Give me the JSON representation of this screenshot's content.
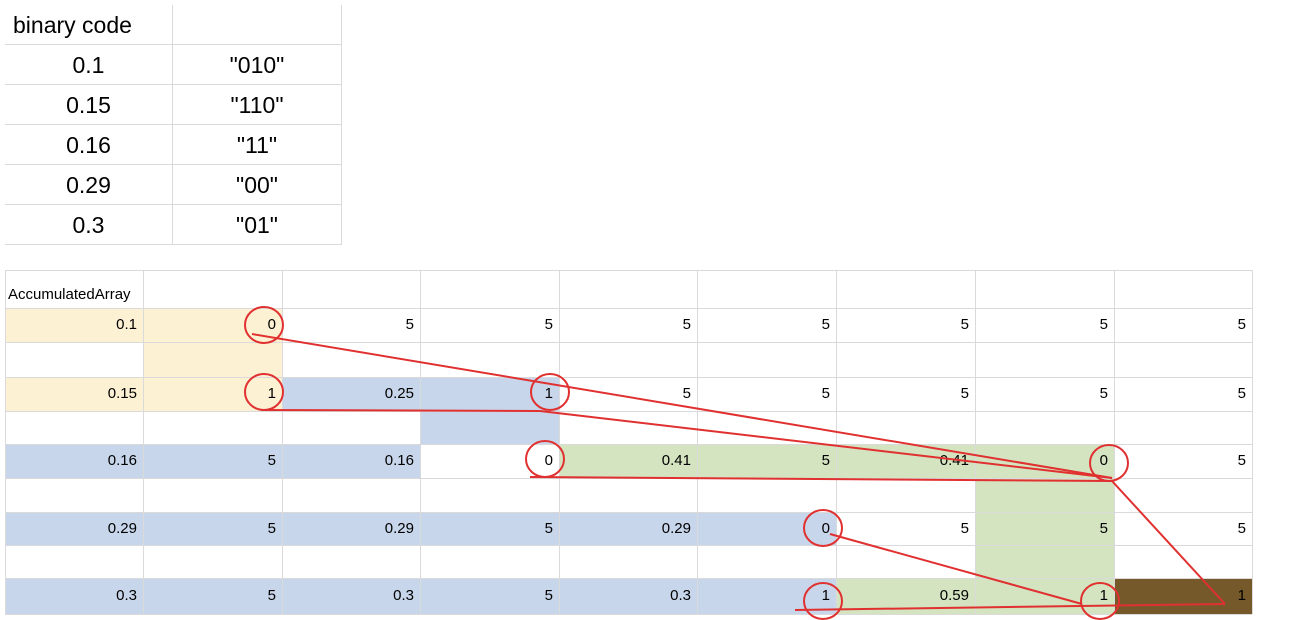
{
  "table1": {
    "header": "binary code",
    "rows": [
      {
        "prob": "0.1",
        "code": "\"010\""
      },
      {
        "prob": "0.15",
        "code": "\"110\""
      },
      {
        "prob": "0.16",
        "code": "\"11\""
      },
      {
        "prob": "0.29",
        "code": "\"00\""
      },
      {
        "prob": "0.3",
        "code": "\"01\""
      }
    ]
  },
  "table2": {
    "label": "AccumulatedArray",
    "rows": [
      [
        "0.1",
        "0",
        "5",
        "5",
        "5",
        "5",
        "5",
        "5",
        "5"
      ],
      [
        "0.15",
        "1",
        "0.25",
        "1",
        "5",
        "5",
        "5",
        "5",
        "5"
      ],
      [
        "0.16",
        "5",
        "0.16",
        "0",
        "0.41",
        "5",
        "0.41",
        "0",
        "5"
      ],
      [
        "0.29",
        "5",
        "0.29",
        "5",
        "0.29",
        "0",
        "5",
        "5",
        "5"
      ],
      [
        "0.3",
        "5",
        "0.3",
        "5",
        "0.3",
        "1",
        "0.59",
        "1",
        "1"
      ]
    ]
  },
  "colors": {
    "yellow": "#fdf1d4",
    "blue": "#c7d6ea",
    "green": "#d4e3c0",
    "dark": "#75592a",
    "annotation": "#e03030"
  }
}
